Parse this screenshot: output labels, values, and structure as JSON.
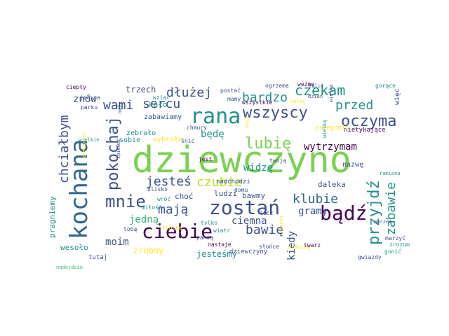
{
  "palette": {
    "dark_purple": "#440154",
    "indigo": "#3b528b",
    "blue": "#31688e",
    "teal": "#21918c",
    "green": "#35b779",
    "lime": "#7ad151",
    "lime_bright": "#90d743",
    "yellow": "#fde725",
    "yellow_green": "#bddf26"
  },
  "words": [
    {
      "text": "dziewczyno",
      "color": "lime"
    },
    {
      "text": "kochana",
      "color": "blue"
    },
    {
      "text": "rana",
      "color": "teal"
    },
    {
      "text": "zostań",
      "color": "indigo"
    },
    {
      "text": "bądź",
      "color": "dark_purple"
    },
    {
      "text": "ciebie",
      "color": "dark_purple"
    },
    {
      "text": "mnie",
      "color": "indigo"
    },
    {
      "text": "pokochaj",
      "color": "indigo"
    },
    {
      "text": "przyjdź",
      "color": "teal"
    },
    {
      "text": "wszyscy",
      "color": "indigo"
    },
    {
      "text": "oczyma",
      "color": "indigo"
    },
    {
      "text": "lubię",
      "color": "lime"
    },
    {
      "text": "czekam",
      "color": "teal"
    },
    {
      "text": "dłużej",
      "color": "indigo"
    },
    {
      "text": "bardzo",
      "color": "teal"
    },
    {
      "text": "przed",
      "color": "teal"
    },
    {
      "text": "wami",
      "color": "indigo"
    },
    {
      "text": "sercu",
      "color": "indigo"
    },
    {
      "text": "mają",
      "color": "indigo"
    },
    {
      "text": "jesteś",
      "color": "indigo"
    },
    {
      "text": "czubie",
      "color": "yellow_green"
    },
    {
      "text": "klubie",
      "color": "blue"
    },
    {
      "text": "zabawie",
      "color": "teal"
    },
    {
      "text": "bawię",
      "color": "indigo"
    },
    {
      "text": "chciałbym",
      "color": "indigo"
    },
    {
      "text": "wytrzymam",
      "color": "dark_purple"
    },
    {
      "text": "widzę",
      "color": "teal"
    },
    {
      "text": "ciemna",
      "color": "indigo"
    },
    {
      "text": "gramy",
      "color": "indigo"
    },
    {
      "text": "jedną",
      "color": "green"
    },
    {
      "text": "kiedy",
      "color": "indigo"
    },
    {
      "text": "moim",
      "color": "indigo"
    },
    {
      "text": "znów",
      "color": "indigo"
    },
    {
      "text": "będę",
      "color": "teal"
    },
    {
      "text": "trzech",
      "color": "indigo"
    },
    {
      "text": "zrobmy",
      "color": "yellow"
    },
    {
      "text": "jesteśmy",
      "color": "teal"
    },
    {
      "text": "wesoło",
      "color": "teal"
    },
    {
      "text": "pragniemy",
      "color": "teal"
    },
    {
      "text": "daleka",
      "color": "indigo"
    },
    {
      "text": "ludzi",
      "color": "indigo"
    },
    {
      "text": "choć",
      "color": "indigo"
    },
    {
      "text": "bawmy",
      "color": "indigo"
    },
    {
      "text": "koło",
      "color": "teal"
    },
    {
      "text": "zabawiamy",
      "color": "indigo"
    },
    {
      "text": "zebrało",
      "color": "teal"
    },
    {
      "text": "wybrało",
      "color": "yellow"
    },
    {
      "text": "sobie",
      "color": "teal"
    },
    {
      "text": "nazwę",
      "color": "indigo"
    },
    {
      "text": "więc",
      "color": "indigo"
    },
    {
      "text": "nietykające",
      "color": "dark_purple"
    },
    {
      "text": "przegonić",
      "color": "yellow"
    },
    {
      "text": "ochotę",
      "color": "yellow"
    },
    {
      "text": "nadchodzi",
      "color": "indigo"
    },
    {
      "text": "dziewczyny",
      "color": "indigo"
    },
    {
      "text": "tutaj",
      "color": "indigo"
    },
    {
      "text": "ciepły",
      "color": "dark_purple"
    },
    {
      "text": "jedyna",
      "color": "indigo"
    },
    {
      "text": "parku",
      "color": "indigo"
    },
    {
      "text": "wziąć",
      "color": "teal"
    },
    {
      "text": "postać",
      "color": "indigo"
    },
    {
      "text": "mamy",
      "color": "indigo"
    },
    {
      "text": "wszystkie",
      "color": "dark_purple"
    },
    {
      "text": "ogrzema",
      "color": "indigo"
    },
    {
      "text": "weźmę",
      "color": "dark_purple"
    },
    {
      "text": "gorące",
      "color": "teal"
    },
    {
      "text": "chmury",
      "color": "indigo"
    },
    {
      "text": "boys",
      "color": "yellow"
    },
    {
      "text": "twoją",
      "color": "indigo"
    },
    {
      "text": "śnić",
      "color": "indigo"
    },
    {
      "text": "jest",
      "color": "dark_purple"
    },
    {
      "text": "blisko",
      "color": "indigo"
    },
    {
      "text": "wróć",
      "color": "teal"
    },
    {
      "text": "miłość",
      "color": "teal"
    },
    {
      "text": "tobą",
      "color": "indigo"
    },
    {
      "text": "trochę",
      "color": "yellow"
    },
    {
      "text": "tylko",
      "color": "teal"
    },
    {
      "text": "wiatr",
      "color": "teal"
    },
    {
      "text": "panią",
      "color": "indigo"
    },
    {
      "text": "nastaje",
      "color": "dark_purple"
    },
    {
      "text": "słońce",
      "color": "indigo"
    },
    {
      "text": "domu",
      "color": "indigo"
    },
    {
      "text": "lecz",
      "color": "indigo"
    },
    {
      "text": "twarz",
      "color": "dark_purple"
    },
    {
      "text": "gwiazdy",
      "color": "indigo"
    },
    {
      "text": "gonić",
      "color": "teal"
    },
    {
      "text": "marzyć",
      "color": "indigo"
    },
    {
      "text": "zrozum",
      "color": "teal"
    },
    {
      "text": "śpiewać",
      "color": "indigo"
    },
    {
      "text": "może",
      "color": "indigo"
    },
    {
      "text": "tulić",
      "color": "indigo"
    },
    {
      "text": "dzień",
      "color": "indigo"
    },
    {
      "text": "wielka",
      "color": "indigo"
    },
    {
      "text": "wielkie",
      "color": "teal"
    },
    {
      "text": "nadejdzie",
      "color": "green"
    },
    {
      "text": "zielonych",
      "color": "yellow"
    },
    {
      "text": "biedni",
      "color": "yellow"
    },
    {
      "text": "ramiona",
      "color": "teal"
    },
    {
      "text": "morzem",
      "color": "indigo"
    },
    {
      "text": "wielką",
      "color": "teal"
    },
    {
      "text": "wołać",
      "color": "yellow"
    }
  ]
}
